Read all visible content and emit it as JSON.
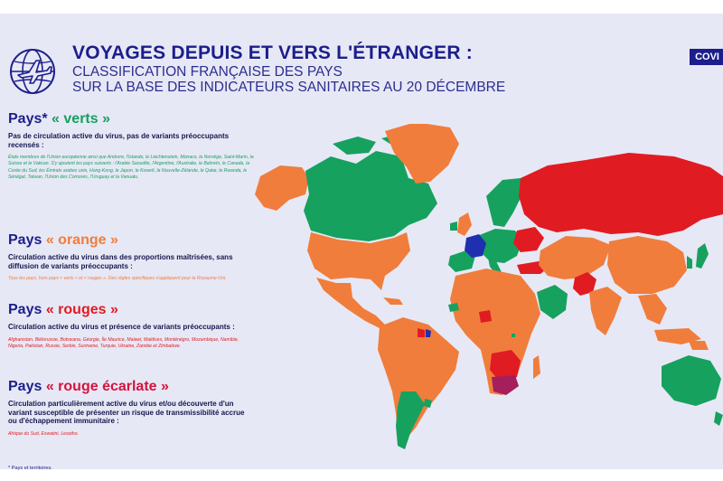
{
  "header": {
    "title": "VOYAGES DEPUIS ET VERS L'ÉTRANGER :",
    "subtitle_line1": "CLASSIFICATION FRANÇAISE DES PAYS",
    "subtitle_line2": "SUR LA BASE DES INDICATEURS SANITAIRES AU 20 DÉCEMBRE",
    "tab": "COVI"
  },
  "colors": {
    "navy": "#1b1e8c",
    "green": "#16a15f",
    "orange": "#f07d3c",
    "red": "#e11b22",
    "scarlet": "#a51f5c",
    "france": "#1f2fb0",
    "background": "#e7e8f5"
  },
  "legend": {
    "green": {
      "prefix": "Pays*",
      "label": "« verts »",
      "description": "Pas de circulation active du virus, pas de variants préoccupants recensés :",
      "countries": "États membres de l'Union européenne ainsi que Andorre, l'Islande, le Liechtenstein, Monaco, la Norvège, Saint-Marin, la Suisse et le Vatican. S'y ajoutent les pays suivants : l'Arabie Saoudite, l'Argentine, l'Australie, le Bahreïn, le Canada, la Corée du Sud, les Émirats arabes unis, Hong-Kong, le Japon, le Koweït, la Nouvelle-Zélande, le Qatar, le Rwanda, le Sénégal, Taïwan, l'Union des Comores, l'Uruguay et la Vanuatu."
    },
    "orange": {
      "prefix": "Pays",
      "label": "« orange »",
      "description": "Circulation active du virus dans des proportions maîtrisées, sans diffusion de variants préoccupants :",
      "countries": "Tous les pays, hors pays « verts » et « rouges ». Des règles spécifiques s'appliquent pour le Royaume-Uni."
    },
    "red": {
      "prefix": "Pays",
      "label": "« rouges »",
      "description": "Circulation active du virus et présence de variants préoccupants :",
      "countries": "Afghanistan, Biélorussie, Botswana, Géorgie, Île Maurice, Malawi, Maldives, Monténégro, Mozambique, Namibie, Nigeria, Pakistan, Russie, Serbie, Suriname, Turquie, Ukraine, Zambie et Zimbabwe."
    },
    "scarlet": {
      "prefix": "Pays",
      "label": "« rouge écarlate »",
      "description": "Circulation particulièrement active du virus et/ou découverte d'un variant susceptible de présenter un risque de transmissibilité accrue ou d'échappement immunitaire :",
      "countries": "Afrique du Sud, Eswatini, Lesotho."
    }
  },
  "footnote": "* Pays et territoires."
}
